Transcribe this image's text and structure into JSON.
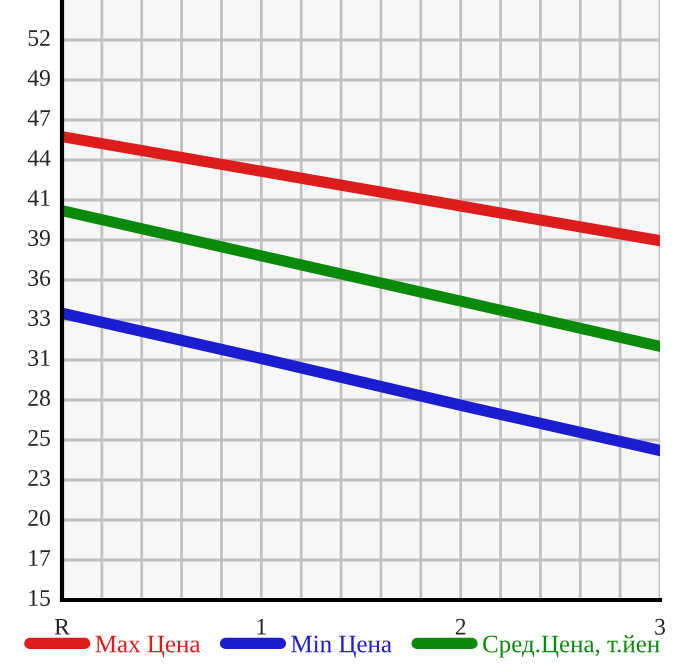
{
  "chart_data": {
    "type": "line",
    "categories": [
      "R",
      "1",
      "2",
      "3"
    ],
    "series": [
      {
        "name": "Max Цена",
        "color": "#dd1c1c",
        "values": [
          45.5,
          43.2,
          40.9,
          38.6
        ]
      },
      {
        "name": "Min Цена",
        "color": "#1c1cd0",
        "values": [
          33.8,
          30.8,
          27.7,
          24.7
        ]
      },
      {
        "name": "Сред.Цена, т.йен",
        "color": "#0a8a0a",
        "values": [
          40.6,
          37.6,
          34.6,
          31.6
        ]
      }
    ],
    "ylim": [
      14.8,
      54.55
    ],
    "yticks": [
      {
        "value": 14.8,
        "label": "15"
      },
      {
        "value": 17.45,
        "label": "17"
      },
      {
        "value": 20.1,
        "label": "20"
      },
      {
        "value": 22.75,
        "label": "23"
      },
      {
        "value": 25.4,
        "label": "25"
      },
      {
        "value": 28.05,
        "label": "28"
      },
      {
        "value": 30.7,
        "label": "31"
      },
      {
        "value": 33.35,
        "label": "33"
      },
      {
        "value": 36,
        "label": "36"
      },
      {
        "value": 38.65,
        "label": "39"
      },
      {
        "value": 41.3,
        "label": "41"
      },
      {
        "value": 43.95,
        "label": "44"
      },
      {
        "value": 46.6,
        "label": "47"
      },
      {
        "value": 49.25,
        "label": "49"
      },
      {
        "value": 51.9,
        "label": "52"
      }
    ],
    "grid": true,
    "legend": "bottom",
    "marker": "none",
    "line_style": "solid"
  }
}
